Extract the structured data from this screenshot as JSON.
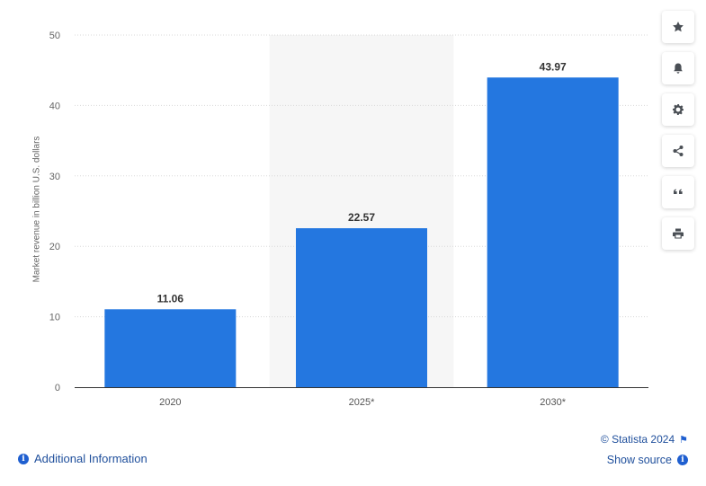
{
  "chart_data": {
    "type": "bar",
    "categories": [
      "2020",
      "2025*",
      "2030*"
    ],
    "values": [
      11.06,
      22.57,
      43.97
    ],
    "value_labels": [
      "11.06",
      "22.57",
      "43.97"
    ],
    "title": "",
    "xlabel": "",
    "ylabel": "Market revenue in billion U.S. dollars",
    "ylim": [
      0,
      50
    ],
    "yticks": [
      0,
      10,
      20,
      30,
      40,
      50
    ],
    "grid": true,
    "highlighted_category": "2025*",
    "bar_color": "#2477e0",
    "highlight_band_color": "#f6f6f6"
  },
  "toolbar": {
    "icons": [
      "star-icon",
      "bell-icon",
      "gear-icon",
      "share-icon",
      "quote-icon",
      "print-icon"
    ]
  },
  "footer": {
    "additional_info": "Additional Information",
    "credit": "© Statista 2024",
    "show_source": "Show source"
  }
}
